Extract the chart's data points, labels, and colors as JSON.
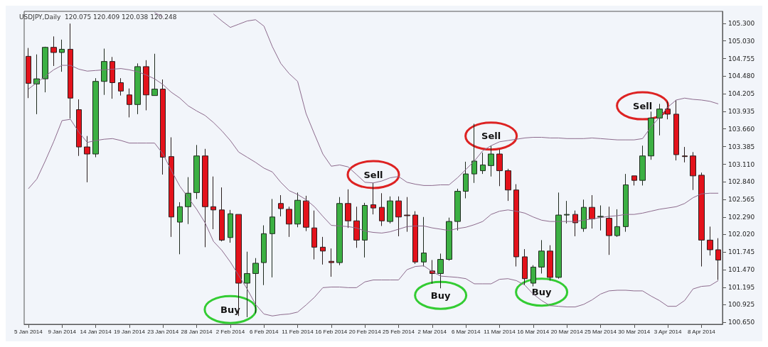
{
  "chart_data": {
    "type": "candlestick",
    "title": "USDJPY,Daily  120.075 120.409 120.038 120.248",
    "categories": [
      "5 Jan 2014",
      null,
      null,
      null,
      "9 Jan 2014",
      null,
      null,
      null,
      "14 Jan 2014",
      null,
      null,
      null,
      "19 Jan 2014",
      null,
      null,
      null,
      "23 Jan 2014",
      null,
      null,
      null,
      "28 Jan 2014",
      null,
      null,
      null,
      "2 Feb 2014",
      null,
      null,
      null,
      "6 Feb 2014",
      null,
      null,
      null,
      "11 Feb 2014",
      null,
      null,
      null,
      "16 Feb 2014",
      null,
      null,
      null,
      "20 Feb 2014",
      null,
      null,
      null,
      "25 Feb 2014",
      null,
      null,
      null,
      "2 Mar 2014",
      null,
      null,
      null,
      "6 Mar 2014",
      null,
      null,
      null,
      "11 Mar 2014",
      null,
      null,
      null,
      "16 Mar 2014",
      null,
      null,
      null,
      "20 Mar 2014",
      null,
      null,
      null,
      "25 Mar 2014",
      null,
      null,
      null,
      "30 Mar 2014",
      null,
      null,
      null,
      "3 Apr 2014",
      null,
      null,
      null,
      "8 Apr 2014",
      null,
      null
    ],
    "ohlc": [
      [
        104.79,
        104.92,
        104.14,
        104.37
      ],
      [
        104.36,
        104.82,
        103.89,
        104.44
      ],
      [
        104.44,
        104.94,
        104.23,
        104.93
      ],
      [
        104.93,
        105.1,
        104.64,
        104.85
      ],
      [
        104.85,
        105.05,
        104.55,
        104.9
      ],
      [
        104.9,
        105.3,
        103.82,
        104.14
      ],
      [
        103.96,
        104.12,
        103.24,
        103.38
      ],
      [
        103.38,
        103.55,
        102.83,
        103.27
      ],
      [
        103.27,
        104.45,
        103.22,
        104.4
      ],
      [
        104.4,
        104.91,
        104.19,
        104.71
      ],
      [
        104.71,
        104.78,
        104.13,
        104.38
      ],
      [
        104.38,
        104.45,
        104.18,
        104.25
      ],
      [
        104.19,
        104.29,
        103.84,
        104.04
      ],
      [
        104.04,
        104.68,
        103.89,
        104.63
      ],
      [
        104.63,
        104.73,
        103.95,
        104.19
      ],
      [
        104.18,
        104.83,
        104.18,
        104.28
      ],
      [
        104.28,
        104.43,
        102.95,
        103.22
      ],
      [
        103.23,
        103.53,
        101.98,
        102.29
      ],
      [
        102.21,
        102.52,
        101.71,
        102.45
      ],
      [
        102.45,
        102.91,
        102.18,
        102.66
      ],
      [
        102.67,
        103.41,
        102.57,
        103.24
      ],
      [
        103.24,
        103.35,
        101.82,
        102.45
      ],
      [
        102.45,
        102.92,
        102.1,
        102.4
      ],
      [
        102.4,
        102.75,
        101.91,
        101.93
      ],
      [
        101.97,
        102.4,
        101.89,
        102.34
      ],
      [
        102.33,
        102.33,
        100.75,
        101.26
      ],
      [
        101.26,
        101.75,
        100.73,
        101.41
      ],
      [
        101.41,
        101.65,
        100.79,
        101.57
      ],
      [
        101.58,
        102.16,
        101.23,
        102.03
      ],
      [
        102.03,
        102.57,
        101.35,
        102.29
      ],
      [
        102.5,
        102.63,
        102.3,
        102.42
      ],
      [
        102.41,
        102.45,
        101.98,
        102.18
      ],
      [
        102.18,
        102.67,
        102.13,
        102.55
      ],
      [
        102.54,
        102.62,
        102.07,
        102.13
      ],
      [
        102.12,
        102.39,
        101.63,
        101.82
      ],
      [
        101.82,
        101.98,
        101.55,
        101.76
      ],
      [
        101.6,
        101.8,
        101.36,
        101.58
      ],
      [
        101.58,
        102.6,
        101.54,
        102.5
      ],
      [
        102.5,
        102.72,
        102.12,
        102.23
      ],
      [
        102.23,
        102.45,
        101.81,
        101.93
      ],
      [
        101.93,
        102.51,
        101.66,
        102.47
      ],
      [
        102.48,
        102.82,
        102.33,
        102.43
      ],
      [
        102.44,
        102.66,
        102.15,
        102.23
      ],
      [
        102.22,
        102.61,
        102.19,
        102.54
      ],
      [
        102.54,
        102.61,
        101.99,
        102.29
      ],
      [
        102.32,
        102.6,
        102.06,
        102.31
      ],
      [
        102.32,
        102.38,
        101.56,
        101.59
      ],
      [
        101.59,
        102.29,
        101.52,
        101.73
      ],
      [
        101.45,
        101.62,
        101.25,
        101.41
      ],
      [
        101.41,
        101.72,
        101.18,
        101.63
      ],
      [
        101.63,
        102.28,
        101.61,
        102.22
      ],
      [
        102.22,
        102.73,
        102.08,
        102.69
      ],
      [
        102.69,
        103.15,
        102.58,
        102.96
      ],
      [
        102.96,
        103.74,
        102.82,
        103.16
      ],
      [
        103.01,
        103.29,
        102.96,
        103.1
      ],
      [
        103.09,
        103.4,
        102.92,
        103.27
      ],
      [
        103.27,
        103.34,
        102.77,
        103.01
      ],
      [
        103.01,
        103.04,
        102.54,
        102.71
      ],
      [
        102.71,
        102.8,
        101.52,
        101.67
      ],
      [
        101.67,
        101.79,
        101.23,
        101.33
      ],
      [
        101.26,
        101.54,
        101.21,
        101.51
      ],
      [
        101.51,
        101.93,
        101.41,
        101.76
      ],
      [
        101.76,
        101.85,
        101.3,
        101.35
      ],
      [
        101.35,
        102.67,
        101.33,
        102.32
      ],
      [
        102.32,
        102.54,
        102.19,
        102.33
      ],
      [
        102.33,
        102.39,
        101.99,
        102.2
      ],
      [
        102.11,
        102.56,
        102.06,
        102.44
      ],
      [
        102.44,
        102.63,
        102.11,
        102.26
      ],
      [
        102.29,
        102.47,
        102.08,
        102.3
      ],
      [
        102.27,
        102.45,
        101.7,
        102.0
      ],
      [
        102.0,
        102.41,
        101.98,
        102.14
      ],
      [
        102.14,
        102.96,
        102.06,
        102.79
      ],
      [
        102.93,
        102.93,
        102.78,
        102.86
      ],
      [
        102.86,
        103.4,
        102.78,
        103.24
      ],
      [
        103.24,
        103.93,
        103.18,
        103.83
      ],
      [
        103.83,
        104.05,
        103.56,
        103.97
      ],
      [
        103.97,
        104.09,
        103.81,
        103.89
      ],
      [
        103.89,
        104.11,
        103.17,
        103.26
      ],
      [
        103.24,
        103.38,
        103.14,
        103.23
      ],
      [
        103.24,
        103.3,
        102.71,
        102.93
      ],
      [
        102.94,
        102.98,
        101.52,
        101.93
      ],
      [
        101.93,
        102.14,
        101.69,
        101.78
      ],
      [
        101.78,
        101.96,
        101.31,
        101.62
      ]
    ],
    "series": [
      {
        "type": "line",
        "color": "#8c6a8c",
        "values": [
          null,
          null,
          null,
          null,
          null,
          null,
          null,
          null,
          null,
          null,
          null,
          null,
          null,
          null,
          null,
          105.47,
          105.4,
          null,
          null,
          null,
          null,
          null,
          105.45,
          105.34,
          105.24,
          105.29,
          105.34,
          105.36,
          105.26,
          104.94,
          104.68,
          104.52,
          104.4,
          103.9,
          103.58,
          103.27,
          103.08,
          103.1,
          103.07,
          102.95,
          102.83,
          102.82,
          102.85,
          102.9,
          102.92,
          102.83,
          102.8,
          102.78,
          102.78,
          102.79,
          102.79,
          102.9,
          103.03,
          103.16,
          103.32,
          103.4,
          103.46,
          103.48,
          103.5,
          103.52,
          103.53,
          103.53,
          103.52,
          103.52,
          103.51,
          103.51,
          103.51,
          103.52,
          103.51,
          103.5,
          103.49,
          103.49,
          103.49,
          103.51,
          103.69,
          103.84,
          104.0,
          104.11,
          104.14,
          104.12,
          104.11,
          104.09,
          104.05
        ]
      },
      {
        "type": "line",
        "color": "#8c6a8c",
        "values": [
          104.28,
          104.38,
          104.48,
          104.58,
          104.65,
          104.65,
          104.59,
          104.56,
          104.57,
          104.58,
          104.59,
          104.6,
          104.58,
          104.55,
          104.5,
          104.44,
          104.35,
          104.23,
          104.14,
          104.02,
          103.94,
          103.87,
          103.76,
          103.63,
          103.48,
          103.3,
          103.22,
          103.14,
          103.05,
          102.99,
          102.83,
          102.7,
          102.64,
          102.56,
          102.45,
          102.3,
          102.16,
          102.15,
          102.14,
          102.12,
          102.07,
          102.05,
          102.04,
          102.06,
          102.1,
          102.14,
          102.15,
          102.15,
          102.12,
          102.1,
          102.08,
          102.11,
          102.13,
          102.17,
          102.22,
          102.33,
          102.38,
          102.4,
          102.38,
          102.35,
          102.29,
          102.24,
          102.22,
          102.22,
          102.22,
          102.22,
          102.24,
          102.26,
          102.28,
          102.3,
          102.31,
          102.33,
          102.33,
          102.35,
          102.38,
          102.41,
          102.43,
          102.45,
          102.5,
          102.59,
          102.65,
          102.66,
          102.66
        ]
      },
      {
        "type": "line",
        "color": "#8c6a8c",
        "values": [
          102.73,
          102.88,
          103.16,
          103.46,
          103.79,
          103.81,
          103.61,
          103.45,
          103.48,
          103.5,
          103.51,
          103.48,
          103.44,
          103.44,
          103.44,
          103.44,
          103.27,
          103.01,
          102.77,
          102.59,
          102.41,
          102.2,
          101.91,
          101.77,
          101.59,
          101.38,
          101.17,
          100.93,
          100.78,
          100.75,
          100.77,
          100.78,
          100.81,
          100.92,
          101.04,
          101.19,
          101.2,
          101.2,
          101.19,
          101.19,
          101.28,
          101.31,
          101.31,
          101.31,
          101.31,
          101.47,
          101.52,
          101.53,
          101.44,
          101.37,
          101.36,
          101.35,
          101.33,
          101.25,
          101.25,
          101.25,
          101.32,
          101.33,
          101.3,
          101.23,
          101.09,
          100.99,
          100.91,
          100.9,
          100.89,
          100.89,
          100.93,
          101.0,
          101.09,
          101.14,
          101.15,
          101.15,
          101.14,
          101.14,
          101.06,
          100.99,
          100.9,
          100.9,
          100.99,
          101.17,
          101.21,
          101.22,
          101.3
        ]
      }
    ],
    "ylim": [
      100.62,
      105.49
    ],
    "yticks": [
      {
        "value": 105.3,
        "label": "105.300"
      },
      {
        "value": 105.03,
        "label": "105.030"
      },
      {
        "value": 104.755,
        "label": "104.755"
      },
      {
        "value": 104.48,
        "label": "104.480"
      },
      {
        "value": 104.205,
        "label": "104.205"
      },
      {
        "value": 103.935,
        "label": "103.935"
      },
      {
        "value": 103.66,
        "label": "103.660"
      },
      {
        "value": 103.385,
        "label": "103.385"
      },
      {
        "value": 103.11,
        "label": "103.110"
      },
      {
        "value": 102.84,
        "label": "102.840"
      },
      {
        "value": 102.565,
        "label": "102.565"
      },
      {
        "value": 102.29,
        "label": "102.290"
      },
      {
        "value": 102.02,
        "label": "102.020"
      },
      {
        "value": 101.745,
        "label": "101.745"
      },
      {
        "value": 101.47,
        "label": "101.470"
      },
      {
        "value": 101.195,
        "label": "101.195"
      },
      {
        "value": 100.925,
        "label": "100.925"
      },
      {
        "value": 100.65,
        "label": "100.650"
      }
    ],
    "annotations": [
      "Buy",
      "Sell",
      "Buy",
      "Sell",
      "Buy",
      "Sell"
    ],
    "grid": false,
    "marker": "none"
  }
}
